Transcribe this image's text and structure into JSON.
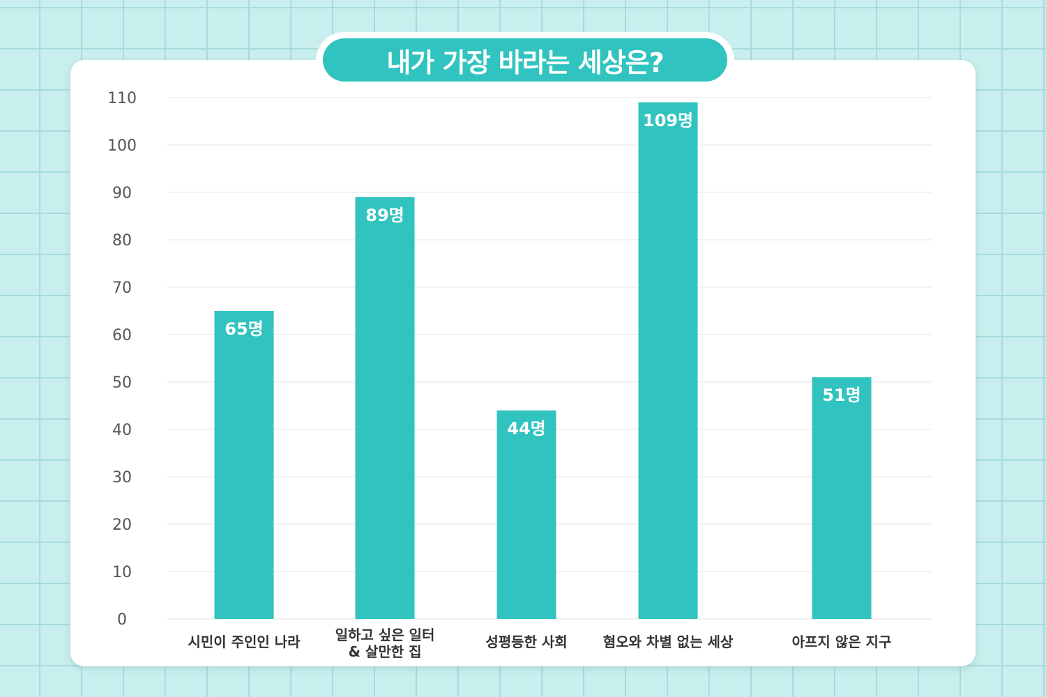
{
  "chart_data": {
    "type": "bar",
    "title": "내가 가장 바라는 세상은?",
    "categories": [
      [
        "시민이 주인인 나라"
      ],
      [
        "일하고 싶은 일터",
        "& 살만한 집"
      ],
      [
        "성평등한 사회"
      ],
      [
        "혐오와 차별 없는 세상"
      ],
      [
        "아프지 않은 지구"
      ]
    ],
    "values": [
      65,
      89,
      44,
      109,
      51
    ],
    "data_labels": [
      "65명",
      "89명",
      "44명",
      "109명",
      "51명"
    ],
    "ylim": [
      0,
      110
    ],
    "yticks": [
      0,
      10,
      20,
      30,
      40,
      50,
      60,
      70,
      80,
      90,
      100,
      110
    ],
    "xlabel": "",
    "ylabel": "",
    "grid": true,
    "bar_color": "#31c3c0"
  }
}
